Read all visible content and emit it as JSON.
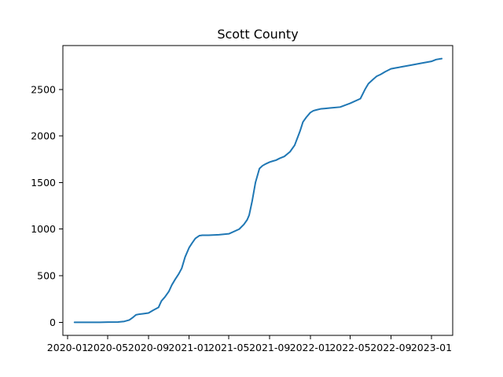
{
  "chart_data": {
    "type": "line",
    "title": "Scott County",
    "xlabel": "",
    "ylabel": "",
    "xlim": [
      "2019-12-18",
      "2023-03-06"
    ],
    "ylim": [
      -140,
      2970
    ],
    "grid": false,
    "legend": "none",
    "x_ticks": [
      "2020-01",
      "2020-05",
      "2020-09",
      "2021-01",
      "2021-05",
      "2021-09",
      "2022-01",
      "2022-05",
      "2022-09",
      "2023-01"
    ],
    "y_ticks": [
      0,
      500,
      1000,
      1500,
      2000,
      2500
    ],
    "series_color": "#1f77b4",
    "series": [
      {
        "x": [
          "2020-01-22",
          "2020-03-01",
          "2020-04-01",
          "2020-05-01",
          "2020-06-01",
          "2020-06-20",
          "2020-07-05",
          "2020-07-15",
          "2020-07-25",
          "2020-08-05",
          "2020-08-15",
          "2020-09-01",
          "2020-09-15",
          "2020-10-01",
          "2020-10-06",
          "2020-10-10",
          "2020-10-20",
          "2020-11-01",
          "2020-11-10",
          "2020-11-20",
          "2020-12-01",
          "2020-12-10",
          "2020-12-20",
          "2021-01-01",
          "2021-01-10",
          "2021-01-20",
          "2021-02-01",
          "2021-02-10",
          "2021-02-20",
          "2021-03-01",
          "2021-04-01",
          "2021-05-01",
          "2021-06-01",
          "2021-06-15",
          "2021-06-25",
          "2021-07-01",
          "2021-07-10",
          "2021-07-20",
          "2021-08-01",
          "2021-08-10",
          "2021-08-20",
          "2021-09-01",
          "2021-09-10",
          "2021-09-20",
          "2021-10-01",
          "2021-10-15",
          "2021-11-01",
          "2021-11-15",
          "2021-12-01",
          "2021-12-10",
          "2021-12-20",
          "2022-01-01",
          "2022-01-10",
          "2022-01-20",
          "2022-02-01",
          "2022-02-15",
          "2022-03-01",
          "2022-04-01",
          "2022-05-01",
          "2022-06-01",
          "2022-06-15",
          "2022-06-25",
          "2022-07-01",
          "2022-07-10",
          "2022-07-20",
          "2022-08-01",
          "2022-08-15",
          "2022-09-01",
          "2022-09-15",
          "2022-10-01",
          "2022-11-01",
          "2022-12-01",
          "2023-01-01",
          "2023-01-15",
          "2023-02-01"
        ],
        "values": [
          0,
          0,
          0,
          2,
          3,
          10,
          25,
          50,
          80,
          88,
          92,
          100,
          130,
          160,
          200,
          230,
          270,
          330,
          400,
          460,
          520,
          580,
          700,
          800,
          850,
          900,
          930,
          935,
          935,
          935,
          940,
          950,
          1000,
          1050,
          1100,
          1150,
          1300,
          1500,
          1650,
          1680,
          1700,
          1720,
          1730,
          1740,
          1760,
          1780,
          1830,
          1900,
          2050,
          2150,
          2200,
          2250,
          2270,
          2280,
          2290,
          2295,
          2300,
          2310,
          2350,
          2400,
          2500,
          2560,
          2580,
          2610,
          2640,
          2660,
          2690,
          2720,
          2730,
          2740,
          2760,
          2780,
          2800,
          2820,
          2830
        ]
      }
    ]
  }
}
